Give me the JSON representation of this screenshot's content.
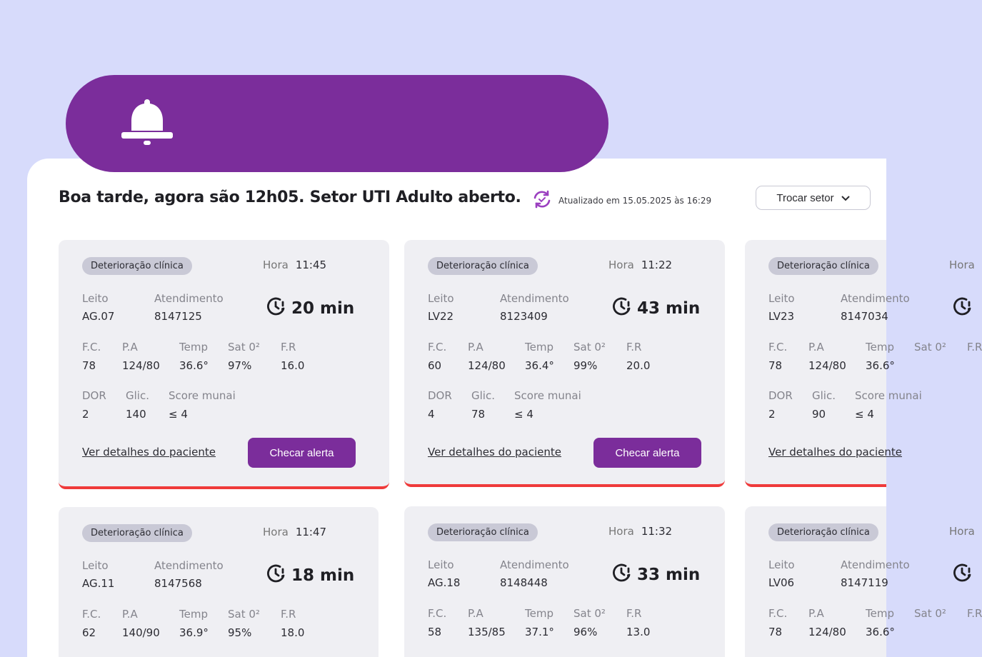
{
  "header": {
    "greeting": "Boa tarde, agora são 12h05. Setor UTI Adulto aberto.",
    "updated": "Atualizado em 15.05.2025 às 16:29",
    "sector_button": "Trocar setor"
  },
  "colors": {
    "accent": "#7b2d9b",
    "alert": "#ef3a3a",
    "background": "#d7dbfb"
  },
  "labels": {
    "hora": "Hora",
    "leito": "Leito",
    "atendimento": "Atendimento",
    "fc": "F.C.",
    "pa": "P.A",
    "temp": "Temp",
    "sat": "Sat 0²",
    "fr": "F.R",
    "dor": "DOR",
    "glic": "Glic.",
    "score": "Score munai",
    "link": "Ver detalhes do paciente",
    "button": "Checar alerta"
  },
  "cards": [
    {
      "badge": "Deterioração clínica",
      "hora": "11:45",
      "timer": "20 min",
      "leito": "AG.07",
      "atendimento": "8147125",
      "fc": "78",
      "pa": "124/80",
      "temp": "36.6°",
      "sat": "97%",
      "fr": "16.0",
      "dor": "2",
      "glic": "140",
      "score": "≤ 4"
    },
    {
      "badge": "Deterioração clínica",
      "hora": "11:22",
      "timer": "43 min",
      "leito": "LV22",
      "atendimento": "8123409",
      "fc": "60",
      "pa": "124/80",
      "temp": "36.4°",
      "sat": "99%",
      "fr": "20.0",
      "dor": "4",
      "glic": "78",
      "score": "≤ 4"
    },
    {
      "badge": "Deterioração clínica",
      "hora": "",
      "timer": "",
      "leito": "LV23",
      "atendimento": "8147034",
      "fc": "78",
      "pa": "124/80",
      "temp": "36.6°",
      "sat": "",
      "fr": "",
      "dor": "2",
      "glic": "90",
      "score": "≤ 4"
    },
    {
      "badge": "Deterioração clínica",
      "hora": "11:47",
      "timer": "18 min",
      "leito": "AG.11",
      "atendimento": "8147568",
      "fc": "62",
      "pa": "140/90",
      "temp": "36.9°",
      "sat": "95%",
      "fr": "18.0",
      "dor": "",
      "glic": "",
      "score": ""
    },
    {
      "badge": "Deterioração clínica",
      "hora": "11:32",
      "timer": "33 min",
      "leito": "AG.18",
      "atendimento": "8148448",
      "fc": "58",
      "pa": "135/85",
      "temp": "37.1°",
      "sat": "96%",
      "fr": "13.0",
      "dor": "",
      "glic": "",
      "score": ""
    },
    {
      "badge": "Deterioração clínica",
      "hora": "",
      "timer": "",
      "leito": "LV06",
      "atendimento": "8147119",
      "fc": "78",
      "pa": "124/80",
      "temp": "36.6°",
      "sat": "",
      "fr": "",
      "dor": "",
      "glic": "",
      "score": ""
    }
  ]
}
